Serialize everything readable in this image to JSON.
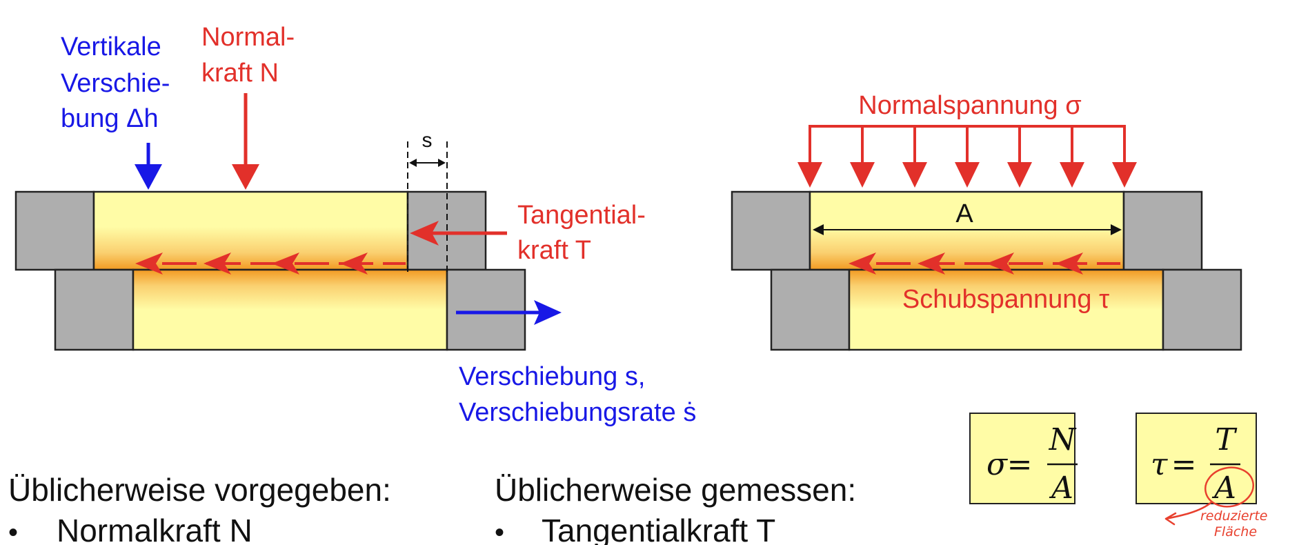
{
  "colors": {
    "red": "#E2302A",
    "blue": "#1818E6",
    "gray": "#AEAEAE",
    "yellow": "#FFFCA6",
    "orange": "#F5A025",
    "outline": "#222222",
    "note": "#E8402E"
  },
  "left_setup": {
    "vertical_displacement": [
      "Vertikale",
      "Verschie-",
      "bung Δh"
    ],
    "normal_force": [
      "Normal-",
      "kraft N"
    ],
    "gap_label": "s",
    "tangential_force": [
      "Tangential-",
      "kraft T"
    ],
    "displacement": [
      "Verschiebung s,",
      "Verschiebungsrate ṡ"
    ]
  },
  "right_setup": {
    "normal_stress": "Normalspannung σ",
    "area_label": "A",
    "shear_stress": "Schubspannung τ"
  },
  "formulas": {
    "sigma": {
      "lhs": "σ",
      "eq": "=",
      "num": "N",
      "den": "A"
    },
    "tau": {
      "lhs": "τ",
      "eq": "=",
      "num": "T",
      "den": "A"
    }
  },
  "annotation": [
    "reduzierte",
    "Fläche"
  ],
  "lists": {
    "given": {
      "heading": "Üblicherweise vorgegeben:",
      "items": [
        "Normalkraft N"
      ]
    },
    "measured": {
      "heading": "Üblicherweise gemessen:",
      "items": [
        "Tangentialkraft T"
      ]
    }
  },
  "bullet": "•"
}
